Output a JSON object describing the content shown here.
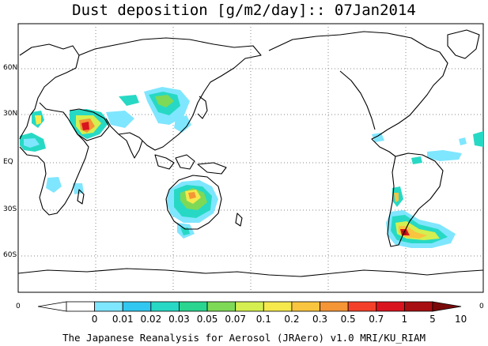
{
  "title": "Dust deposition [g/m2/day]:: 07Jan2014",
  "footer": "The Japanese Reanalysis for Aerosol (JRAero) v1.0 MRI/KU_RIAM",
  "lat_labels": [
    "60N",
    "30N",
    "EQ",
    "30S",
    "60S"
  ],
  "x_axis_left": "0",
  "x_axis_right": "0",
  "colorbar": {
    "labels": [
      "0",
      "0.01",
      "0.02",
      "0.03",
      "0.05",
      "0.07",
      "0.1",
      "0.2",
      "0.3",
      "0.5",
      "0.7",
      "1",
      "5",
      "10"
    ],
    "colors": [
      "#ffffff",
      "#ffffff",
      "#7fe6ff",
      "#31c7f0",
      "#27d9c4",
      "#2ad58f",
      "#7ed957",
      "#d4ef4f",
      "#f5e94c",
      "#f9c43f",
      "#f49536",
      "#f4402a",
      "#d9141f",
      "#a70f12",
      "#7a0a0a"
    ]
  },
  "map": {
    "projection": "cylindrical",
    "lon_range": [
      0,
      360
    ],
    "lat_range": [
      -90,
      90
    ],
    "gridlines": "dotted",
    "coastline_color": "#000000"
  }
}
